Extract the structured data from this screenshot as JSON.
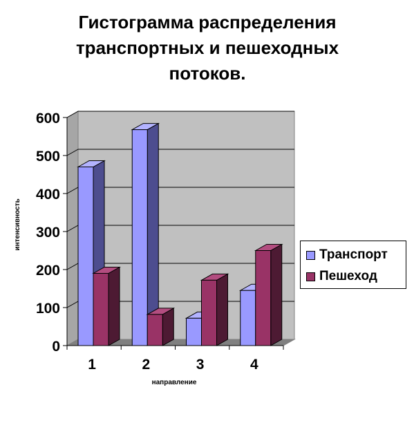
{
  "chart_data": {
    "type": "bar",
    "title_lines": [
      "Гистограмма распределения",
      "транспортных и пешеходных",
      "потоков."
    ],
    "xlabel": "направление",
    "ylabel": "интенсивность",
    "categories": [
      "1",
      "2",
      "3",
      "4"
    ],
    "ylim": [
      0,
      600
    ],
    "yticks": [
      "0",
      "100",
      "200",
      "300",
      "400",
      "500",
      "600"
    ],
    "grid": true,
    "legend_position": "right",
    "series": [
      {
        "name": "Транспорт",
        "values": [
          470,
          568,
          72,
          145
        ],
        "color": "#9999ff",
        "side_color": "#4d4d8f",
        "top_color": "#b3b3ff"
      },
      {
        "name": "Пешеход",
        "values": [
          190,
          82,
          172,
          250
        ],
        "color": "#993366",
        "side_color": "#4d1a33",
        "top_color": "#b34d80"
      }
    ],
    "plot_background": "#c0c0c0"
  }
}
